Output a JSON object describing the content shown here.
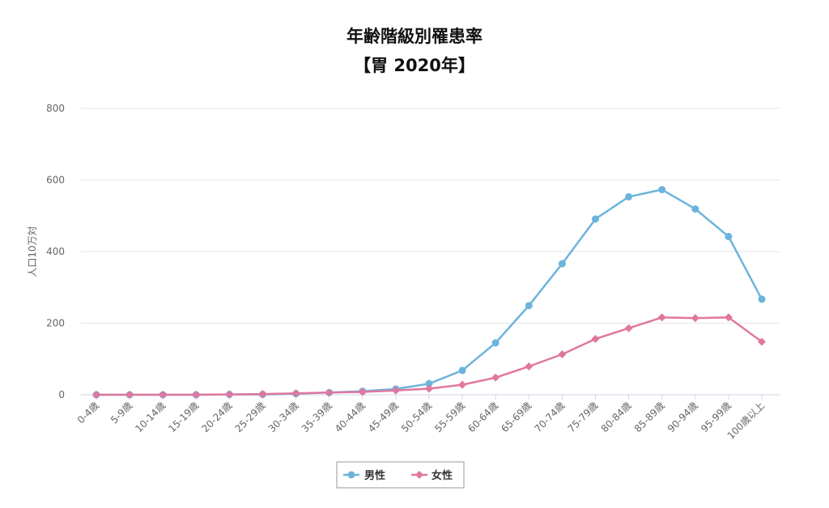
{
  "chart_data": {
    "type": "line",
    "title": "年齢階級別罹患率",
    "subtitle": "【胃 2020年】",
    "xlabel": "",
    "ylabel": "人口10万対",
    "ylim": [
      0,
      800
    ],
    "yticks": [
      0,
      200,
      400,
      600,
      800
    ],
    "grid": true,
    "legend_position": "bottom-center",
    "categories": [
      "0-4歳",
      "5-9歳",
      "10-14歳",
      "15-19歳",
      "20-24歳",
      "25-29歳",
      "30-34歳",
      "35-39歳",
      "40-44歳",
      "45-49歳",
      "50-54歳",
      "55-59歳",
      "60-64歳",
      "65-69歳",
      "70-74歳",
      "75-79歳",
      "80-84歳",
      "85-89歳",
      "90-94歳",
      "95-99歳",
      "100歳以上"
    ],
    "series": [
      {
        "name": "男性",
        "color": "#6cb4dc",
        "marker": "circle",
        "values": [
          0,
          0,
          0,
          0,
          1,
          1,
          3,
          6,
          10,
          16,
          31,
          68,
          145,
          249,
          366,
          491,
          553,
          573,
          519,
          442,
          267
        ]
      },
      {
        "name": "女性",
        "color": "#e0779f",
        "marker": "diamond",
        "values": [
          0,
          0,
          0,
          0,
          1,
          2,
          4,
          6,
          8,
          12,
          17,
          28,
          48,
          79,
          113,
          156,
          186,
          216,
          214,
          216,
          148
        ]
      }
    ]
  }
}
